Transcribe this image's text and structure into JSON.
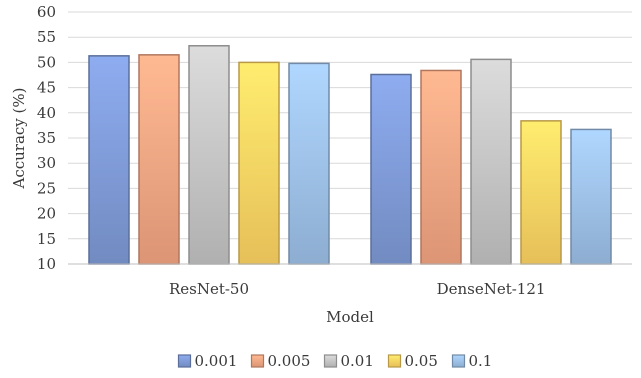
{
  "chart_data": {
    "type": "bar",
    "categories": [
      "ResNet-50",
      "DenseNet-121"
    ],
    "series": [
      {
        "name": "0.001",
        "values": [
          51.3,
          47.6
        ],
        "color": "#7f9ad6"
      },
      {
        "name": "0.005",
        "values": [
          51.5,
          48.4
        ],
        "color": "#f4a582"
      },
      {
        "name": "0.01",
        "values": [
          53.3,
          50.6
        ],
        "color": "#c4c4c4"
      },
      {
        "name": "0.05",
        "values": [
          50.0,
          38.4
        ],
        "color": "#ffd463"
      },
      {
        "name": "0.1",
        "values": [
          49.8,
          36.7
        ],
        "color": "#9dc0e8"
      }
    ],
    "xlabel": "Model",
    "ylabel": "Accuracy (%)",
    "ylim": [
      10,
      60
    ],
    "yticks": [
      10,
      15,
      20,
      25,
      30,
      35,
      40,
      45,
      50,
      55,
      60
    ],
    "grid": true,
    "legend_position": "bottom"
  }
}
